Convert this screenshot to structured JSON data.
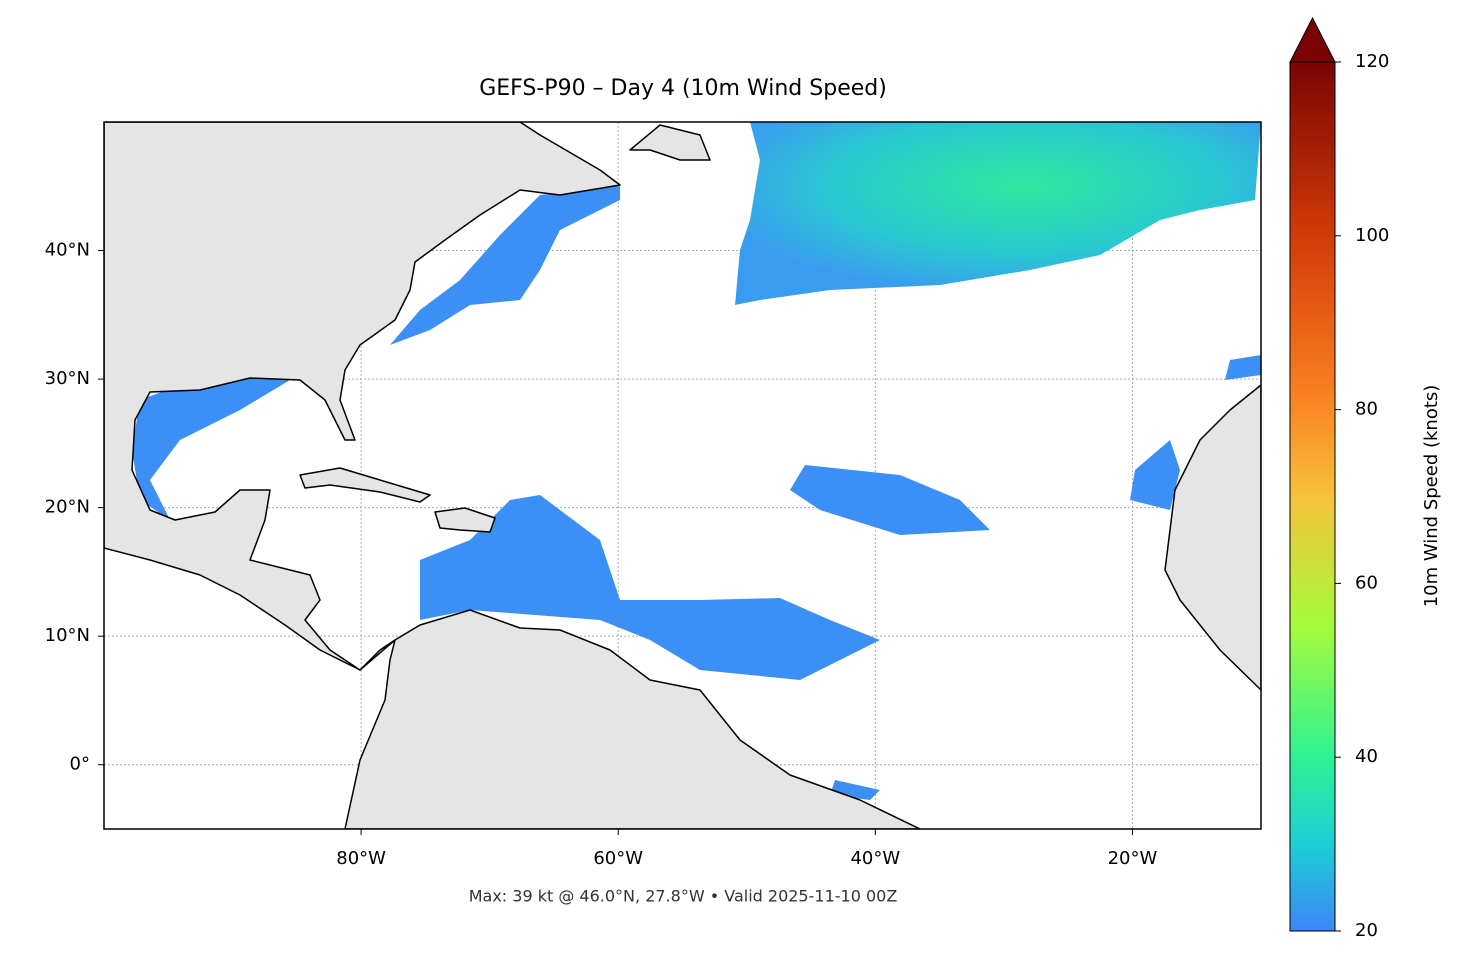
{
  "chart_data": {
    "type": "map",
    "title": "GEFS-P90 – Day 4 (10m Wind Speed)",
    "footnote": "Max: 39 kt @ 46.0°N, 27.8°W • Valid 2025-11-10 00Z",
    "xlim": [
      -100,
      -10
    ],
    "ylim": [
      -5,
      50
    ],
    "xticks": [
      {
        "value": -80,
        "label": "80°W"
      },
      {
        "value": -60,
        "label": "60°W"
      },
      {
        "value": -40,
        "label": "40°W"
      },
      {
        "value": -20,
        "label": "20°W"
      }
    ],
    "yticks": [
      {
        "value": 0,
        "label": "0°"
      },
      {
        "value": 10,
        "label": "10°N"
      },
      {
        "value": 20,
        "label": "20°N"
      },
      {
        "value": 30,
        "label": "30°N"
      },
      {
        "value": 40,
        "label": "40°N"
      }
    ],
    "grid": true,
    "colorbar": {
      "label": "10m Wind Speed (knots)",
      "lim": [
        20,
        120
      ],
      "ticks": [
        20,
        40,
        60,
        80,
        100,
        120
      ],
      "extend": "max"
    }
  }
}
